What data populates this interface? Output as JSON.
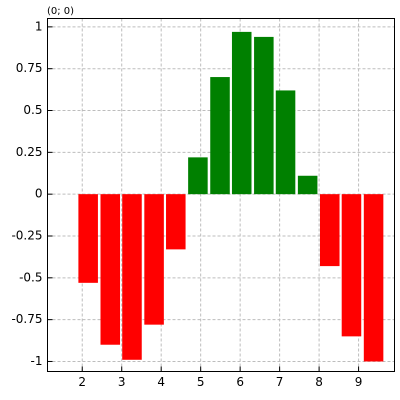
{
  "chart_data": {
    "type": "bar",
    "annotation": "(0; 0)",
    "x": [
      2.15,
      2.71,
      3.26,
      3.82,
      4.37,
      4.93,
      5.49,
      6.04,
      6.6,
      7.15,
      7.71,
      8.27,
      8.82,
      9.38
    ],
    "values": [
      -0.53,
      -0.9,
      -0.99,
      -0.78,
      -0.33,
      0.22,
      0.7,
      0.97,
      0.94,
      0.62,
      0.11,
      -0.43,
      -0.85,
      -1.0
    ],
    "positive_color": "#008000",
    "negative_color": "#ff0000",
    "xlim": [
      1.12,
      9.91
    ],
    "xticks": [
      2,
      3,
      4,
      5,
      6,
      7,
      8,
      9
    ],
    "ylim": [
      -1.06,
      1.05
    ],
    "yticks": [
      -1,
      -0.75,
      -0.5,
      -0.25,
      0,
      0.25,
      0.5,
      0.75,
      1
    ],
    "grid": true
  }
}
